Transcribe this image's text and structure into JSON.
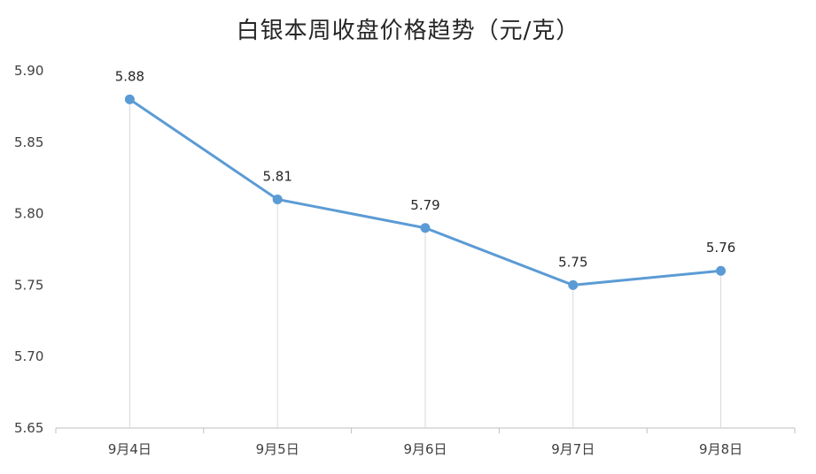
{
  "chart_data": {
    "type": "line",
    "title": "白银本周收盘价格趋势（元/克）",
    "categories": [
      "9月4日",
      "9月5日",
      "9月6日",
      "9月7日",
      "9月8日"
    ],
    "series": [
      {
        "values": [
          5.88,
          5.81,
          5.79,
          5.75,
          5.76
        ]
      }
    ],
    "data_labels": [
      "5.88",
      "5.81",
      "5.79",
      "5.75",
      "5.76"
    ],
    "y_ticks": [
      "5.65",
      "5.70",
      "5.75",
      "5.80",
      "5.85",
      "5.90"
    ],
    "ylim": [
      5.65,
      5.9
    ],
    "xlabel": "",
    "ylabel": "",
    "grid": false,
    "drop_lines": true,
    "legend": "none",
    "colors": {
      "line": "#5b9bd5",
      "drop_line": "#d9d9d9",
      "axis": "#bfbfbf"
    }
  }
}
